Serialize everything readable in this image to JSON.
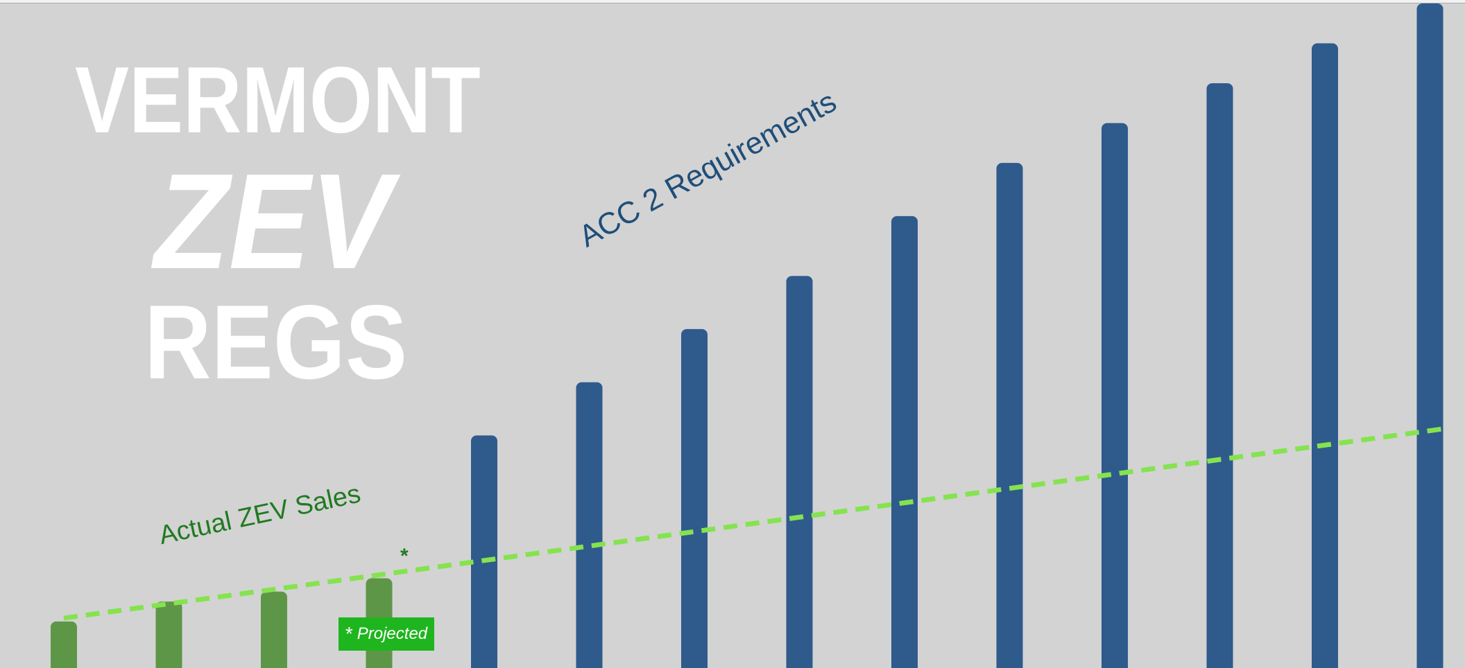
{
  "title": {
    "line1": "VERMONT",
    "line2": "ZEV",
    "line3": "REGS"
  },
  "chart_data": {
    "type": "bar",
    "categories": [
      "",
      "",
      "",
      "",
      "",
      "",
      "",
      "",
      "",
      "",
      "",
      "",
      "",
      ""
    ],
    "series": [
      {
        "name": "Actual ZEV Sales",
        "values": [
          7,
          10,
          11.5,
          13.5,
          null,
          null,
          null,
          null,
          null,
          null,
          null,
          null,
          null,
          null
        ],
        "color": "#5e9648"
      },
      {
        "name": "ACC 2 Requirements",
        "values": [
          null,
          null,
          null,
          null,
          35,
          43,
          51,
          59,
          68,
          76,
          82,
          88,
          94,
          100
        ],
        "color": "#2f5a8c"
      }
    ],
    "trend": {
      "from": [
        0,
        7.5
      ],
      "to": [
        13,
        36
      ],
      "color": "#85e34f",
      "style": "dashed"
    },
    "projected_index": 3,
    "annotations": {
      "acc_label": "ACC 2 Requirements",
      "sales_label": "Actual ZEV Sales",
      "asterisk": "*",
      "projected_star": "*",
      "projected_text": "Projected"
    },
    "ylim": [
      0,
      100
    ],
    "grid": false,
    "legend": "none",
    "title": "",
    "xlabel": "",
    "ylabel": ""
  }
}
